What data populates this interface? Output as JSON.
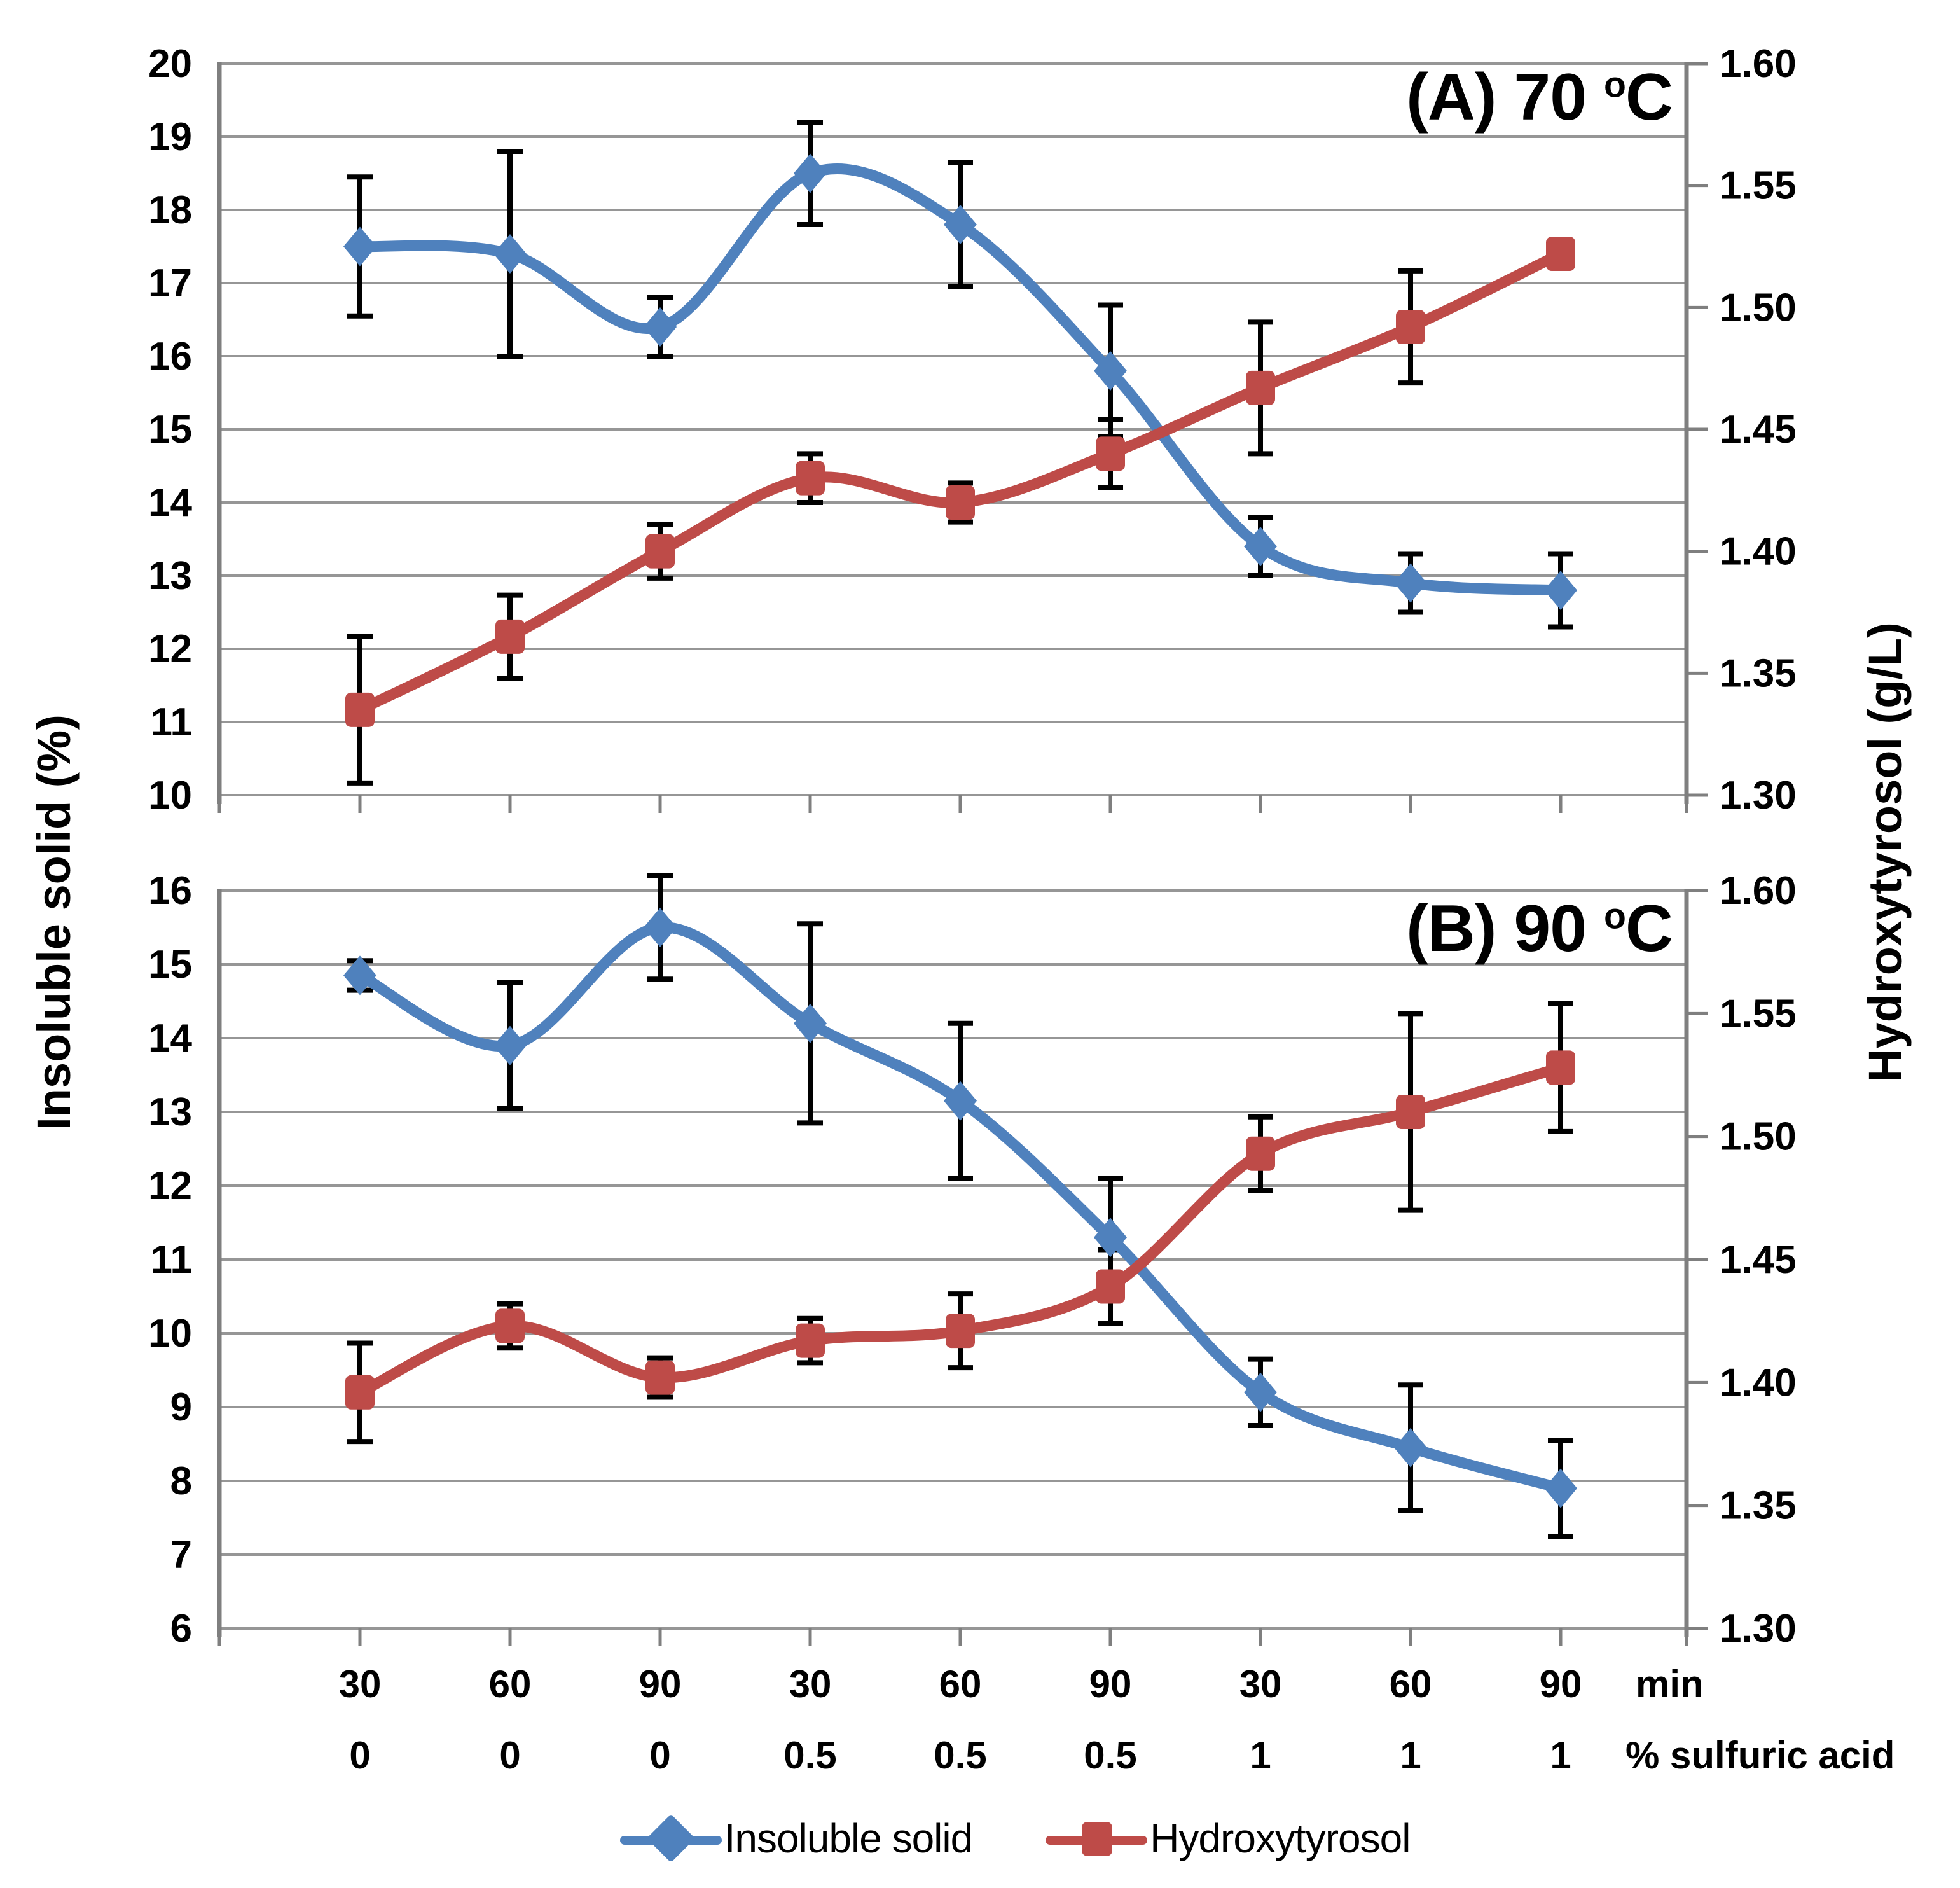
{
  "figure": {
    "left_axis_title": "Insoluble solid (%)",
    "right_axis_title": "Hydroxytyrosol (g/L)",
    "x_caption_row1": "min",
    "x_caption_row2": "% sulfuric acid",
    "legend": [
      {
        "label": "Insoluble solid",
        "marker": "diamond",
        "color": "#4F81BD"
      },
      {
        "label": "Hydroxytyrosol",
        "marker": "square",
        "color": "#BE4B48"
      }
    ],
    "colors": {
      "insoluble_solid": "#4F81BD",
      "hydroxytyrosol": "#BE4B48",
      "gridline": "#969696",
      "axis": "#7f7f7f",
      "error_bar": "#000000"
    }
  },
  "chart_data": [
    {
      "type": "line",
      "panel": "A",
      "title_prefix": "(A) 70 ",
      "title_sup": "o",
      "title_suffix": "C",
      "categories_min": [
        "30",
        "60",
        "90",
        "30",
        "60",
        "90",
        "30",
        "60",
        "90"
      ],
      "categories_acid": [
        "0",
        "0",
        "0",
        "0.5",
        "0.5",
        "0.5",
        "1",
        "1",
        "1"
      ],
      "left_axis": {
        "label": "Insoluble solid (%)",
        "min": 10,
        "max": 20,
        "step": 1,
        "ticks": [
          "20",
          "19",
          "18",
          "17",
          "16",
          "15",
          "14",
          "13",
          "12",
          "11",
          "10"
        ]
      },
      "right_axis": {
        "label": "Hydroxytyrosol (g/L)",
        "min": 1.3,
        "max": 1.6,
        "step": 0.05,
        "ticks": [
          "1.60",
          "1.55",
          "1.50",
          "1.45",
          "1.40",
          "1.35",
          "1.30"
        ]
      },
      "series": [
        {
          "name": "Insoluble solid",
          "axis": "left",
          "color": "#4F81BD",
          "marker": "diamond",
          "values": [
            17.5,
            17.4,
            16.4,
            18.5,
            17.8,
            15.8,
            13.4,
            12.9,
            12.8
          ],
          "errors": [
            0.95,
            1.4,
            0.4,
            0.7,
            0.85,
            0.9,
            0.4,
            0.4,
            0.5
          ]
        },
        {
          "name": "Hydroxytyrosol",
          "axis": "right",
          "color": "#BE4B48",
          "marker": "square",
          "values": [
            1.335,
            1.365,
            1.4,
            1.43,
            1.42,
            1.44,
            1.467,
            1.492,
            1.522
          ],
          "errors": [
            0.03,
            0.017,
            0.011,
            0.01,
            0.008,
            0.014,
            0.027,
            0.023,
            0.005
          ]
        }
      ]
    },
    {
      "type": "line",
      "panel": "B",
      "title_prefix": "(B) 90 ",
      "title_sup": "o",
      "title_suffix": "C",
      "categories_min": [
        "30",
        "60",
        "90",
        "30",
        "60",
        "90",
        "30",
        "60",
        "90"
      ],
      "categories_acid": [
        "0",
        "0",
        "0",
        "0.5",
        "0.5",
        "0.5",
        "1",
        "1",
        "1"
      ],
      "left_axis": {
        "label": "Insoluble solid (%)",
        "min": 6,
        "max": 16,
        "step": 1,
        "ticks": [
          "16",
          "15",
          "14",
          "13",
          "12",
          "11",
          "10",
          "9",
          "8",
          "7",
          "6"
        ]
      },
      "right_axis": {
        "label": "Hydroxytyrosol (g/L)",
        "min": 1.3,
        "max": 1.6,
        "step": 0.05,
        "ticks": [
          "1.60",
          "1.55",
          "1.50",
          "1.45",
          "1.40",
          "1.35",
          "1.30"
        ]
      },
      "series": [
        {
          "name": "Insoluble solid",
          "axis": "left",
          "color": "#4F81BD",
          "marker": "diamond",
          "values": [
            14.85,
            13.9,
            15.5,
            14.2,
            13.15,
            11.3,
            9.2,
            8.45,
            7.9
          ],
          "errors": [
            0.2,
            0.85,
            0.7,
            1.35,
            1.05,
            0.8,
            0.45,
            0.85,
            0.65
          ]
        },
        {
          "name": "Hydroxytyrosol",
          "axis": "right",
          "color": "#BE4B48",
          "marker": "square",
          "values": [
            1.396,
            1.423,
            1.402,
            1.417,
            1.421,
            1.439,
            1.493,
            1.51,
            1.528
          ],
          "errors": [
            0.02,
            0.009,
            0.008,
            0.009,
            0.015,
            0.015,
            0.015,
            0.04,
            0.026
          ]
        }
      ]
    }
  ]
}
